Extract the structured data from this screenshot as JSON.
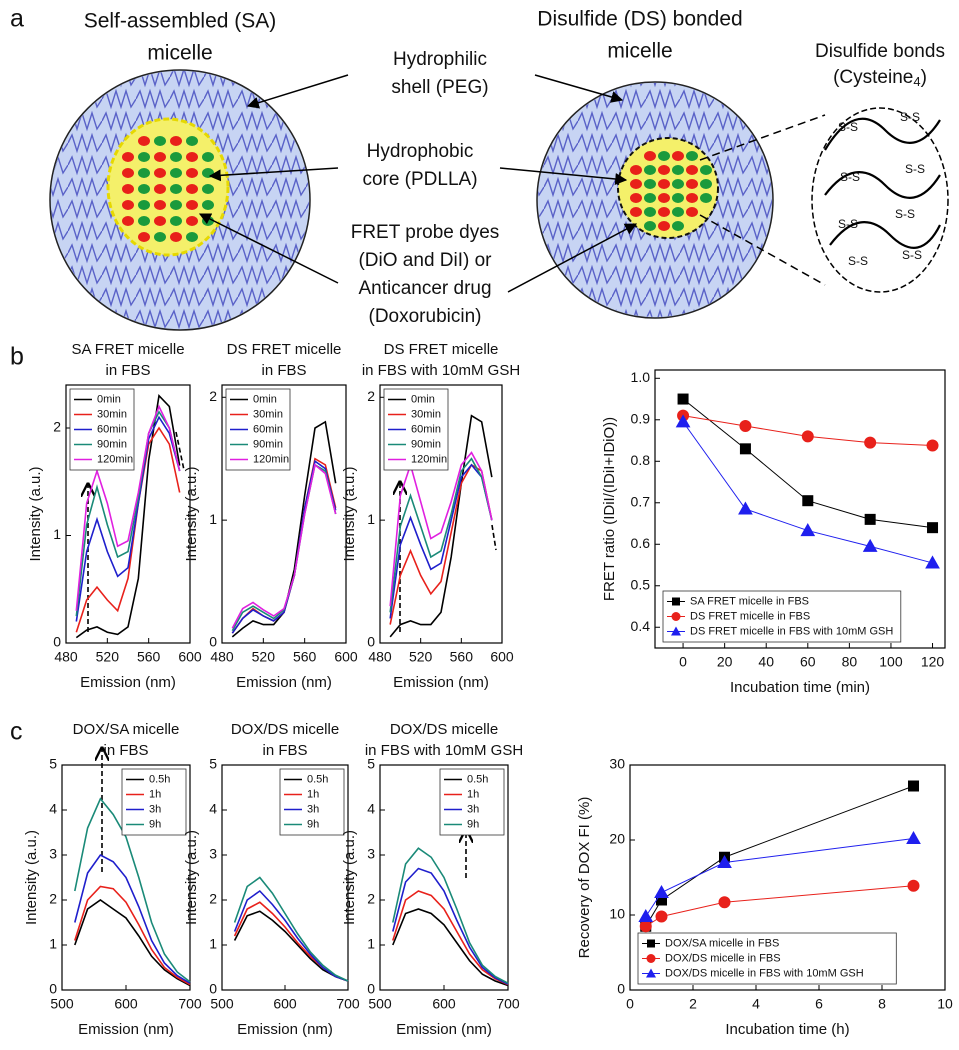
{
  "figure": {
    "panel_labels": [
      "a",
      "b",
      "c"
    ],
    "panel_a": {
      "sa_title": [
        "Self-assembled (SA)",
        "micelle"
      ],
      "ds_title": [
        "Disulfide (DS) bonded",
        "micelle"
      ],
      "labels": [
        [
          "Hydrophilic",
          "shell (PEG)"
        ],
        [
          "Hydrophobic",
          "core (PDLLA)"
        ],
        [
          "FRET probe dyes",
          "(DiO and DiI) or",
          "Anticancer drug",
          "(Doxorubicin)"
        ]
      ],
      "inset_title": "Disulfide bonds",
      "inset_subtitle": {
        "text": "(Cysteine",
        "sub": "4",
        "end": ")"
      },
      "bond_label": "S-S"
    }
  },
  "chart_data": [
    {
      "type": "line",
      "title": [
        "SA FRET micelle",
        "in FBS"
      ],
      "x_label": "Emission (nm)",
      "y_label": "Intensity (a.u.)",
      "x": [
        490,
        500,
        510,
        520,
        530,
        540,
        550,
        560,
        570,
        580,
        590
      ],
      "xlim": [
        480,
        600
      ],
      "xticks": [
        480,
        520,
        560,
        600
      ],
      "ylim": [
        0,
        2.4
      ],
      "yticks": [
        0,
        1,
        2
      ],
      "legend": "upper left",
      "series": [
        {
          "name": "0min",
          "color": "#000000",
          "values": [
            0.05,
            0.12,
            0.15,
            0.1,
            0.08,
            0.15,
            0.6,
            1.7,
            2.3,
            2.2,
            1.65
          ]
        },
        {
          "name": "30min",
          "color": "#e8211b",
          "values": [
            0.1,
            0.4,
            0.52,
            0.4,
            0.3,
            0.6,
            1.3,
            1.85,
            2.0,
            1.85,
            1.4
          ]
        },
        {
          "name": "60min",
          "color": "#1f1fcc",
          "values": [
            0.2,
            0.85,
            1.15,
            0.85,
            0.62,
            0.7,
            1.3,
            1.9,
            2.1,
            1.95,
            1.6
          ]
        },
        {
          "name": "90min",
          "color": "#1a8a78",
          "values": [
            0.25,
            1.1,
            1.45,
            1.1,
            0.8,
            0.85,
            1.35,
            1.95,
            2.15,
            2.0,
            1.6
          ]
        },
        {
          "name": "120min",
          "color": "#e020e0",
          "values": [
            0.3,
            1.3,
            1.6,
            1.3,
            0.9,
            0.95,
            1.4,
            1.95,
            2.2,
            2.0,
            1.6
          ]
        }
      ]
    },
    {
      "type": "line",
      "title": [
        "DS FRET micelle",
        "in FBS"
      ],
      "x_label": "Emission (nm)",
      "y_label": "Intensity (a.u.)",
      "x": [
        490,
        500,
        510,
        520,
        530,
        540,
        550,
        560,
        570,
        580,
        590
      ],
      "xlim": [
        480,
        600
      ],
      "xticks": [
        480,
        520,
        560,
        600
      ],
      "ylim": [
        0,
        2.1
      ],
      "yticks": [
        0,
        1,
        2
      ],
      "legend": "upper left",
      "series": [
        {
          "name": "0min",
          "color": "#000000",
          "values": [
            0.05,
            0.12,
            0.18,
            0.15,
            0.15,
            0.25,
            0.6,
            1.2,
            1.75,
            1.8,
            1.3
          ]
        },
        {
          "name": "30min",
          "color": "#e8211b",
          "values": [
            0.08,
            0.2,
            0.28,
            0.22,
            0.18,
            0.25,
            0.55,
            1.1,
            1.5,
            1.45,
            1.1
          ]
        },
        {
          "name": "60min",
          "color": "#1f1fcc",
          "values": [
            0.08,
            0.2,
            0.27,
            0.22,
            0.18,
            0.25,
            0.55,
            1.1,
            1.48,
            1.42,
            1.08
          ]
        },
        {
          "name": "90min",
          "color": "#1a8a78",
          "values": [
            0.1,
            0.25,
            0.3,
            0.25,
            0.2,
            0.27,
            0.55,
            1.05,
            1.45,
            1.4,
            1.05
          ]
        },
        {
          "name": "120min",
          "color": "#e020e0",
          "values": [
            0.12,
            0.28,
            0.33,
            0.27,
            0.22,
            0.28,
            0.55,
            1.05,
            1.45,
            1.38,
            1.05
          ]
        }
      ]
    },
    {
      "type": "line",
      "title": [
        "DS  FRET micelle",
        "in FBS with 10mM GSH"
      ],
      "x_label": "Emission (nm)",
      "y_label": "Intensity (a.u.)",
      "x": [
        490,
        500,
        510,
        520,
        530,
        540,
        550,
        560,
        570,
        580,
        590
      ],
      "xlim": [
        480,
        600
      ],
      "xticks": [
        480,
        520,
        560,
        600
      ],
      "ylim": [
        0,
        2.1
      ],
      "yticks": [
        0,
        1,
        2
      ],
      "legend": "upper left",
      "series": [
        {
          "name": "0min",
          "color": "#000000",
          "values": [
            0.05,
            0.15,
            0.18,
            0.15,
            0.15,
            0.25,
            0.7,
            1.3,
            1.85,
            1.8,
            1.35
          ]
        },
        {
          "name": "30min",
          "color": "#e8211b",
          "values": [
            0.15,
            0.55,
            0.75,
            0.55,
            0.4,
            0.5,
            0.9,
            1.3,
            1.45,
            1.4,
            1.0
          ]
        },
        {
          "name": "60min",
          "color": "#1f1fcc",
          "values": [
            0.2,
            0.8,
            1.02,
            0.8,
            0.6,
            0.65,
            1.0,
            1.35,
            1.45,
            1.35,
            1.0
          ]
        },
        {
          "name": "90min",
          "color": "#1a8a78",
          "values": [
            0.25,
            0.95,
            1.2,
            0.95,
            0.7,
            0.75,
            1.05,
            1.4,
            1.5,
            1.35,
            1.0
          ]
        },
        {
          "name": "120min",
          "color": "#e020e0",
          "values": [
            0.3,
            1.2,
            1.45,
            1.15,
            0.85,
            0.9,
            1.15,
            1.45,
            1.55,
            1.4,
            1.0
          ]
        }
      ]
    },
    {
      "type": "line",
      "x_label": "Incubation time (min)",
      "y_label": "FRET ratio (IDiI/(IDiI+IDiO))",
      "x": [
        0,
        30,
        60,
        90,
        120
      ],
      "xlim": [
        -13.5,
        126
      ],
      "xticks": [
        0,
        20,
        40,
        60,
        80,
        100,
        120
      ],
      "ylim": [
        0.35,
        1.02
      ],
      "yticks": [
        0.4,
        0.5,
        0.6,
        0.7,
        0.8,
        0.9,
        {
          "value": 1,
          "label": "1.0"
        }
      ],
      "legend": "lower left",
      "series": [
        {
          "name": "SA FRET micelle in FBS",
          "color": "#000000",
          "marker": "square",
          "values": [
            0.95,
            0.83,
            0.705,
            0.66,
            0.64
          ]
        },
        {
          "name": "DS FRET micelle in FBS",
          "color": "#e8211b",
          "marker": "circle",
          "values": [
            0.91,
            0.885,
            0.86,
            0.845,
            0.838
          ]
        },
        {
          "name": "DS FRET micelle in FBS with 10mM GSH",
          "color": "#1f1fee",
          "marker": "triangle",
          "values": [
            0.895,
            0.685,
            0.633,
            0.595,
            0.555
          ]
        }
      ]
    },
    {
      "type": "line",
      "title": [
        "DOX/SA micelle",
        "in FBS"
      ],
      "x_label": "Emission (nm)",
      "y_label": "Intensity (a.u.)",
      "x": [
        520,
        540,
        560,
        580,
        600,
        620,
        640,
        660,
        680,
        700
      ],
      "xlim": [
        500,
        700
      ],
      "xticks": [
        500,
        600,
        700
      ],
      "ylim": [
        0,
        5
      ],
      "yticks": [
        0,
        1,
        2,
        3,
        4,
        5
      ],
      "legend": "upper right",
      "series": [
        {
          "name": "0.5h",
          "color": "#000000",
          "values": [
            1.0,
            1.8,
            2.0,
            1.8,
            1.6,
            1.2,
            0.75,
            0.45,
            0.25,
            0.1
          ]
        },
        {
          "name": "1h",
          "color": "#e8211b",
          "values": [
            1.1,
            2.0,
            2.3,
            2.25,
            1.95,
            1.45,
            0.9,
            0.5,
            0.28,
            0.12
          ]
        },
        {
          "name": "3h",
          "color": "#1f1fcc",
          "values": [
            1.5,
            2.6,
            3.0,
            2.85,
            2.5,
            1.85,
            1.1,
            0.6,
            0.32,
            0.15
          ]
        },
        {
          "name": "9h",
          "color": "#1a8a78",
          "values": [
            2.2,
            3.6,
            4.25,
            3.9,
            3.4,
            2.5,
            1.5,
            0.8,
            0.4,
            0.18
          ]
        }
      ]
    },
    {
      "type": "line",
      "title": [
        "DOX/DS micelle",
        "in FBS"
      ],
      "x_label": "Emission (nm)",
      "y_label": "Intensity (a.u.)",
      "x": [
        520,
        540,
        560,
        580,
        600,
        620,
        640,
        660,
        680,
        700
      ],
      "xlim": [
        500,
        700
      ],
      "xticks": [
        500,
        600,
        700
      ],
      "ylim": [
        0,
        5
      ],
      "yticks": [
        0,
        1,
        2,
        3,
        4,
        5
      ],
      "legend": "upper right",
      "series": [
        {
          "name": "0.5h",
          "color": "#000000",
          "values": [
            1.1,
            1.65,
            1.75,
            1.55,
            1.3,
            1.0,
            0.7,
            0.45,
            0.3,
            0.2
          ]
        },
        {
          "name": "1h",
          "color": "#e8211b",
          "values": [
            1.2,
            1.8,
            1.95,
            1.7,
            1.4,
            1.05,
            0.75,
            0.5,
            0.3,
            0.2
          ]
        },
        {
          "name": "3h",
          "color": "#1f1fcc",
          "values": [
            1.3,
            2.0,
            2.2,
            1.9,
            1.55,
            1.15,
            0.8,
            0.5,
            0.3,
            0.2
          ]
        },
        {
          "name": "9h",
          "color": "#1a8a78",
          "values": [
            1.5,
            2.3,
            2.5,
            2.15,
            1.7,
            1.25,
            0.85,
            0.55,
            0.33,
            0.2
          ]
        }
      ]
    },
    {
      "type": "line",
      "title": [
        "DOX/DS micelle",
        "in FBS with 10mM GSH"
      ],
      "x_label": "Emission (nm)",
      "y_label": "Intensity (a.u.)",
      "x": [
        520,
        540,
        560,
        580,
        600,
        620,
        640,
        660,
        680,
        700
      ],
      "xlim": [
        500,
        700
      ],
      "xticks": [
        500,
        600,
        700
      ],
      "ylim": [
        0,
        5
      ],
      "yticks": [
        0,
        1,
        2,
        3,
        4,
        5
      ],
      "legend": "upper right",
      "series": [
        {
          "name": "0.5h",
          "color": "#000000",
          "values": [
            1.0,
            1.7,
            1.8,
            1.7,
            1.45,
            1.05,
            0.65,
            0.35,
            0.2,
            0.1
          ]
        },
        {
          "name": "1h",
          "color": "#e8211b",
          "values": [
            1.1,
            2.0,
            2.2,
            2.1,
            1.8,
            1.3,
            0.8,
            0.45,
            0.25,
            0.12
          ]
        },
        {
          "name": "3h",
          "color": "#1f1fcc",
          "values": [
            1.3,
            2.4,
            2.7,
            2.6,
            2.2,
            1.55,
            0.95,
            0.5,
            0.27,
            0.13
          ]
        },
        {
          "name": "9h",
          "color": "#1a8a78",
          "values": [
            1.5,
            2.8,
            3.15,
            2.95,
            2.5,
            1.8,
            1.05,
            0.55,
            0.3,
            0.15
          ]
        }
      ]
    },
    {
      "type": "line",
      "x_label": "Incubation time (h)",
      "y_label": "Recovery of DOX FI (%)",
      "x": [
        0.5,
        1,
        3,
        9
      ],
      "xlim": [
        0,
        10
      ],
      "xticks": [
        0,
        2,
        4,
        6,
        8,
        10
      ],
      "ylim": [
        0,
        30
      ],
      "yticks": [
        0,
        10,
        20,
        30
      ],
      "legend": "lower left",
      "series": [
        {
          "name": "DOX/SA micelle in FBS",
          "color": "#000000",
          "marker": "square",
          "values": [
            8.5,
            12,
            17.7,
            27.2
          ]
        },
        {
          "name": "DOX/DS micelle in FBS",
          "color": "#e8211b",
          "marker": "circle",
          "values": [
            8.5,
            9.8,
            11.7,
            13.9
          ]
        },
        {
          "name": "DOX/DS micelle in FBS with 10mM GSH",
          "color": "#1f1fee",
          "marker": "triangle",
          "values": [
            9.8,
            13,
            17,
            20.2
          ]
        }
      ]
    }
  ]
}
